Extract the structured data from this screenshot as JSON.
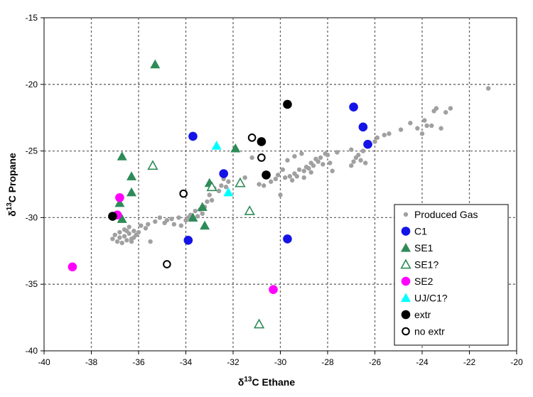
{
  "chart_data": {
    "type": "scatter",
    "xlabel_prefix": "δ",
    "xlabel_sup": "13",
    "xlabel_rest": "C Ethane",
    "ylabel_prefix": "δ",
    "ylabel_sup": "13",
    "ylabel_rest": "C Propane",
    "xlim": [
      -40,
      -20
    ],
    "ylim": [
      -40,
      -15
    ],
    "xticks": [
      -40,
      -38,
      -36,
      -34,
      -32,
      -30,
      -28,
      -26,
      -24,
      -22,
      -20
    ],
    "yticks": [
      -40,
      -35,
      -30,
      -25,
      -20,
      -15
    ],
    "grid": true,
    "legend_position": "bottom-right",
    "series": [
      {
        "name": "Produced Gas",
        "marker": "small-circle",
        "color": "#a0a0a0",
        "points": [
          [
            -37.0,
            -31.3
          ],
          [
            -36.8,
            -31.5
          ],
          [
            -36.6,
            -31.4
          ],
          [
            -36.4,
            -31.2
          ],
          [
            -36.2,
            -31.0
          ],
          [
            -36.5,
            -31.7
          ],
          [
            -36.9,
            -31.8
          ],
          [
            -36.7,
            -31.9
          ],
          [
            -36.3,
            -31.6
          ],
          [
            -36.1,
            -31.3
          ],
          [
            -36.6,
            -30.9
          ],
          [
            -36.4,
            -30.7
          ],
          [
            -36.2,
            -31.5
          ],
          [
            -36.8,
            -31.1
          ],
          [
            -37.1,
            -31.6
          ],
          [
            -36.5,
            -31.0
          ],
          [
            -36.0,
            -31.1
          ],
          [
            -36.3,
            -31.8
          ],
          [
            -35.9,
            -30.6
          ],
          [
            -35.7,
            -30.8
          ],
          [
            -35.6,
            -30.5
          ],
          [
            -35.5,
            -31.8
          ],
          [
            -35.3,
            -30.3
          ],
          [
            -35.1,
            -30.0
          ],
          [
            -34.9,
            -30.4
          ],
          [
            -34.8,
            -30.2
          ],
          [
            -34.6,
            -30.1
          ],
          [
            -34.5,
            -30.5
          ],
          [
            -34.3,
            -30.0
          ],
          [
            -34.2,
            -30.6
          ],
          [
            -34.0,
            -30.2
          ],
          [
            -33.9,
            -30.0
          ],
          [
            -33.8,
            -29.8
          ],
          [
            -33.6,
            -29.5
          ],
          [
            -33.5,
            -29.9
          ],
          [
            -33.4,
            -29.4
          ],
          [
            -33.3,
            -29.7
          ],
          [
            -33.2,
            -29.2
          ],
          [
            -33.1,
            -28.8
          ],
          [
            -33.0,
            -28.3
          ],
          [
            -32.9,
            -28.7
          ],
          [
            -32.8,
            -27.8
          ],
          [
            -32.6,
            -28.0
          ],
          [
            -32.5,
            -27.6
          ],
          [
            -32.3,
            -27.7
          ],
          [
            -32.2,
            -27.3
          ],
          [
            -31.5,
            -27.0
          ],
          [
            -30.9,
            -27.5
          ],
          [
            -31.2,
            -25.5
          ],
          [
            -30.1,
            -26.8
          ],
          [
            -29.8,
            -27.0
          ],
          [
            -29.6,
            -26.9
          ],
          [
            -29.5,
            -27.2
          ],
          [
            -29.4,
            -26.7
          ],
          [
            -29.3,
            -26.9
          ],
          [
            -29.2,
            -26.4
          ],
          [
            -29.0,
            -26.5
          ],
          [
            -28.9,
            -26.2
          ],
          [
            -28.8,
            -26.3
          ],
          [
            -28.7,
            -25.9
          ],
          [
            -28.6,
            -26.1
          ],
          [
            -28.5,
            -25.6
          ],
          [
            -28.4,
            -25.8
          ],
          [
            -28.3,
            -25.5
          ],
          [
            -28.2,
            -26.0
          ],
          [
            -28.1,
            -25.2
          ],
          [
            -28.0,
            -25.3
          ],
          [
            -27.9,
            -25.9
          ],
          [
            -27.8,
            -26.5
          ],
          [
            -27.6,
            -25.1
          ],
          [
            -29.1,
            -25.2
          ],
          [
            -29.4,
            -25.4
          ],
          [
            -29.7,
            -25.7
          ],
          [
            -29.9,
            -26.4
          ],
          [
            -30.2,
            -27.1
          ],
          [
            -30.4,
            -27.3
          ],
          [
            -30.7,
            -27.6
          ],
          [
            -29.0,
            -27.0
          ],
          [
            -28.7,
            -26.6
          ],
          [
            -30.0,
            -28.3
          ],
          [
            -27.0,
            -24.9
          ],
          [
            -26.9,
            -25.8
          ],
          [
            -26.8,
            -25.5
          ],
          [
            -26.7,
            -25.3
          ],
          [
            -26.5,
            -25.0
          ],
          [
            -26.4,
            -25.9
          ],
          [
            -26.2,
            -24.5
          ],
          [
            -26.0,
            -24.3
          ],
          [
            -25.9,
            -24.0
          ],
          [
            -25.6,
            -23.8
          ],
          [
            -25.4,
            -23.7
          ],
          [
            -24.9,
            -23.4
          ],
          [
            -24.5,
            -22.9
          ],
          [
            -24.2,
            -23.3
          ],
          [
            -24.0,
            -23.7
          ],
          [
            -23.9,
            -22.7
          ],
          [
            -23.8,
            -23.1
          ],
          [
            -23.6,
            -23.1
          ],
          [
            -23.5,
            -22.0
          ],
          [
            -23.4,
            -21.8
          ],
          [
            -23.2,
            -23.3
          ],
          [
            -23.0,
            -22.1
          ],
          [
            -22.8,
            -21.8
          ],
          [
            -21.2,
            -20.3
          ],
          [
            -27.0,
            -26.1
          ],
          [
            -26.6,
            -25.7
          ],
          [
            -32.4,
            -27.1
          ]
        ]
      },
      {
        "name": "C1",
        "marker": "circle",
        "color": "#1414e6",
        "points": [
          [
            -33.7,
            -23.9
          ],
          [
            -26.9,
            -21.7
          ],
          [
            -26.5,
            -23.2
          ],
          [
            -26.3,
            -24.5
          ],
          [
            -32.4,
            -26.7
          ],
          [
            -33.9,
            -31.7
          ],
          [
            -29.7,
            -31.6
          ]
        ]
      },
      {
        "name": "SE1",
        "marker": "triangle",
        "color": "#2e8b57",
        "points": [
          [
            -35.3,
            -18.5
          ],
          [
            -36.7,
            -25.4
          ],
          [
            -36.3,
            -26.9
          ],
          [
            -36.3,
            -28.1
          ],
          [
            -36.8,
            -28.9
          ],
          [
            -36.7,
            -30.1
          ],
          [
            -33.7,
            -30.0
          ],
          [
            -33.3,
            -29.2
          ],
          [
            -33.0,
            -27.4
          ],
          [
            -33.2,
            -30.6
          ],
          [
            -31.9,
            -24.8
          ]
        ]
      },
      {
        "name": "SE1?",
        "marker": "triangle-open",
        "color": "#2e8b57",
        "points": [
          [
            -35.4,
            -26.1
          ],
          [
            -32.9,
            -27.7
          ],
          [
            -31.7,
            -27.4
          ],
          [
            -31.3,
            -29.5
          ],
          [
            -30.9,
            -38.0
          ]
        ]
      },
      {
        "name": "SE2",
        "marker": "circle",
        "color": "#ff00ff",
        "points": [
          [
            -38.8,
            -33.7
          ],
          [
            -36.8,
            -28.5
          ],
          [
            -36.9,
            -29.8
          ],
          [
            -30.3,
            -35.4
          ]
        ]
      },
      {
        "name": "UJ/C1?",
        "marker": "triangle",
        "color": "#00ffff",
        "points": [
          [
            -32.7,
            -24.6
          ],
          [
            -32.2,
            -28.1
          ]
        ]
      },
      {
        "name": "extr",
        "marker": "circle",
        "color": "#000000",
        "points": [
          [
            -29.7,
            -21.5
          ],
          [
            -30.8,
            -24.3
          ],
          [
            -30.6,
            -26.8
          ],
          [
            -37.1,
            -29.9
          ]
        ]
      },
      {
        "name": "no extr",
        "marker": "circle-open",
        "color": "#000000",
        "points": [
          [
            -31.2,
            -24.0
          ],
          [
            -30.8,
            -25.5
          ],
          [
            -34.1,
            -28.2
          ],
          [
            -34.8,
            -33.5
          ]
        ]
      }
    ]
  }
}
